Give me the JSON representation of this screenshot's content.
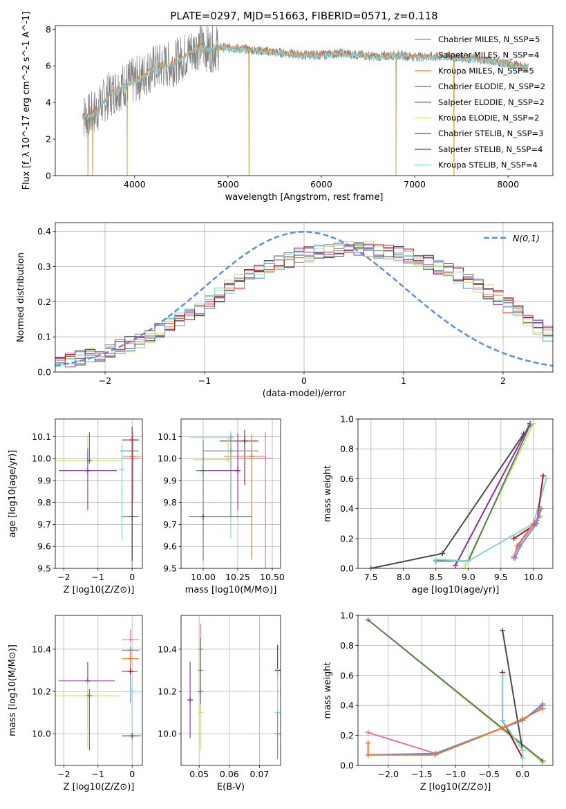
{
  "colors": {
    "Chabrier MILES": "#6b8fd6",
    "Salpeter MILES": "#e8709a",
    "Kroupa MILES": "#e8742a",
    "Chabrier ELODIE": "#5a7a5a",
    "Salpeter ELODIE": "#8a2aa8",
    "Kroupa ELODIE": "#c8e070",
    "Chabrier STELIB": "#4a4a4a",
    "Salpeter STELIB": "#a01818",
    "Kroupa STELIB": "#7fd3dc",
    "normal": "#5b8fd9",
    "spectrum": "#808080"
  },
  "chart_data": [
    {
      "id": "spectrum",
      "type": "line",
      "title": "PLATE=0297, MJD=51663, FIBERID=0571, z=0.118",
      "xlabel": "wavelength [Angstrom, rest frame]",
      "ylabel": "Flux [f_λ 10^-17 erg cm^-2 s^-1 A^-1]",
      "xlim": [
        3150,
        8480
      ],
      "ylim": [
        0,
        8.2
      ],
      "xticks": [
        4000,
        5000,
        6000,
        7000,
        8000
      ],
      "yticks": [
        0,
        2,
        4,
        6,
        8
      ],
      "grid": false,
      "legend_position": "top-right",
      "legend": [
        {
          "model": "Chabrier MILES",
          "label": "Chabrier MILES, N_SSP=5"
        },
        {
          "model": "Salpeter MILES",
          "label": "Salpeter MILES, N_SSP=4"
        },
        {
          "model": "Kroupa MILES",
          "label": "Kroupa MILES, N_SSP=5"
        },
        {
          "model": "Chabrier ELODIE",
          "label": "Chabrier ELODIE, N_SSP=2"
        },
        {
          "model": "Salpeter ELODIE",
          "label": "Salpeter ELODIE, N_SSP=2"
        },
        {
          "model": "Kroupa ELODIE",
          "label": "Kroupa ELODIE, N_SSP=2"
        },
        {
          "model": "Chabrier STELIB",
          "label": "Chabrier STELIB, N_SSP=3"
        },
        {
          "model": "Salpeter STELIB",
          "label": "Salpeter STELIB, N_SSP=4"
        },
        {
          "model": "Kroupa STELIB",
          "label": "Kroupa STELIB, N_SSP=4"
        }
      ],
      "continuum": {
        "x": [
          3440,
          3500,
          3600,
          3700,
          3800,
          3900,
          4000,
          4100,
          4200,
          4300,
          4400,
          4500,
          4600,
          4700,
          4800,
          4900,
          5000,
          5200,
          5400,
          5600,
          5800,
          6000,
          6200,
          6400,
          6600,
          6800,
          7000,
          7200,
          7400,
          7600,
          7800,
          8000,
          8220
        ],
        "y": [
          3.3,
          3.2,
          3.6,
          4.3,
          4.7,
          5.0,
          5.2,
          5.5,
          5.9,
          6.0,
          6.1,
          6.4,
          6.8,
          7.1,
          6.9,
          7.0,
          7.0,
          6.9,
          6.8,
          6.7,
          6.6,
          6.6,
          6.7,
          6.6,
          6.5,
          6.6,
          6.5,
          6.5,
          6.5,
          6.4,
          6.3,
          6.1,
          5.9
        ]
      },
      "noisy_ranges": [
        [
          3450,
          4900
        ]
      ],
      "spike_wavelengths": [
        3500,
        3550,
        3920,
        5225,
        6800,
        7420
      ],
      "models_plotted": [
        "Kroupa MILES",
        "Kroupa STELIB"
      ]
    },
    {
      "id": "residuals",
      "type": "histogram",
      "xlabel": "(data-model)/error",
      "ylabel": "Normed distribution",
      "xlim": [
        -2.5,
        2.5
      ],
      "ylim": [
        0,
        0.425
      ],
      "xticks": [
        -2,
        -1,
        0,
        1,
        2
      ],
      "yticks": [
        0.0,
        0.1,
        0.2,
        0.3,
        0.4
      ],
      "grid": true,
      "legend_position": "top-right",
      "legend": [
        {
          "label": "N(0,1)",
          "style": "dashed"
        }
      ],
      "bin_width": 0.1,
      "base_values": [
        0.03,
        0.035,
        0.04,
        0.045,
        0.05,
        0.06,
        0.07,
        0.08,
        0.09,
        0.105,
        0.12,
        0.135,
        0.15,
        0.165,
        0.18,
        0.2,
        0.22,
        0.24,
        0.255,
        0.27,
        0.285,
        0.3,
        0.31,
        0.32,
        0.33,
        0.335,
        0.34,
        0.345,
        0.35,
        0.35,
        0.35,
        0.35,
        0.345,
        0.34,
        0.335,
        0.33,
        0.32,
        0.31,
        0.3,
        0.29,
        0.275,
        0.26,
        0.245,
        0.23,
        0.21,
        0.19,
        0.17,
        0.15,
        0.13,
        0.11,
        0.095,
        0.08,
        0.07,
        0.06,
        0.052,
        0.045,
        0.04,
        0.035,
        0.032,
        0.03
      ]
    },
    {
      "id": "age-vs-Z",
      "type": "scatter",
      "xlabel": "Z [log10(Z/Z⊙)]",
      "ylabel": "age  [log10(age/yr)]",
      "xlim": [
        -2.25,
        0.3
      ],
      "ylim": [
        9.5,
        10.18
      ],
      "xticks": [
        -2,
        -1,
        0
      ],
      "yticks": [
        9.5,
        9.6,
        9.7,
        9.8,
        9.9,
        10.0,
        10.1
      ],
      "grid": true,
      "points": [
        {
          "model": "Kroupa ELODIE",
          "x": -1.3,
          "y": 9.99,
          "xerr": [
            1.0,
            1.0
          ],
          "yerr": [
            0.0,
            0.12
          ]
        },
        {
          "model": "Salpeter ELODIE",
          "x": -1.3,
          "y": 9.945,
          "xerr": [
            0.85,
            0.85
          ],
          "yerr": [
            0.18,
            0.1
          ]
        },
        {
          "model": "Chabrier ELODIE",
          "x": -1.25,
          "y": 9.99,
          "xerr": [
            0.05,
            0.05
          ],
          "yerr": [
            0.0,
            0.13
          ]
        },
        {
          "model": "Chabrier MILES",
          "x": 0.0,
          "y": 10.035,
          "xerr": [
            0.35,
            0.2
          ],
          "yerr": [
            0.6,
            0.08
          ]
        },
        {
          "model": "Salpeter STELIB",
          "x": 0.0,
          "y": 10.085,
          "xerr": [
            0.3,
            0.2
          ],
          "yerr": [
            0.55,
            0.06
          ]
        },
        {
          "model": "Kroupa MILES",
          "x": 0.0,
          "y": 10.01,
          "xerr": [
            0.3,
            0.25
          ],
          "yerr": [
            0.4,
            0.1
          ]
        },
        {
          "model": "Salpeter MILES",
          "x": 0.02,
          "y": 10.0,
          "xerr": [
            0.3,
            0.2
          ],
          "yerr": [
            0.2,
            0.12
          ]
        },
        {
          "model": "Chabrier STELIB",
          "x": 0.0,
          "y": 9.735,
          "xerr": [
            0.3,
            0.2
          ],
          "yerr": [
            0.2,
            0.37
          ]
        },
        {
          "model": "Kroupa STELIB",
          "x": -0.3,
          "y": 9.95,
          "xerr": [
            0.0,
            0.0
          ],
          "yerr": [
            0.32,
            0.12
          ]
        }
      ]
    },
    {
      "id": "age-vs-mass",
      "type": "scatter",
      "xlabel": "mass [log10(M/M⊙)]",
      "ylabel": "",
      "xlim": [
        9.84,
        10.56
      ],
      "ylim": [
        9.5,
        10.18
      ],
      "xticks": [
        10.0,
        10.25,
        10.5
      ],
      "yticks": [
        9.5,
        9.6,
        9.7,
        9.8,
        9.9,
        10.0,
        10.1
      ],
      "grid": true,
      "points": [
        {
          "model": "Kroupa STELIB",
          "x": 10.2,
          "y": 10.095,
          "xerr": [
            0.3,
            0.0
          ],
          "yerr": [
            0.46,
            0.03
          ]
        },
        {
          "model": "Salpeter STELIB",
          "x": 10.3,
          "y": 10.08,
          "xerr": [
            0.18,
            0.1
          ],
          "yerr": [
            0.2,
            0.05
          ]
        },
        {
          "model": "Chabrier MILES",
          "x": 10.2,
          "y": 10.035,
          "xerr": [
            0.2,
            0.2
          ],
          "yerr": [
            0.3,
            0.08
          ]
        },
        {
          "model": "Kroupa MILES",
          "x": 10.35,
          "y": 10.01,
          "xerr": [
            0.2,
            0.1
          ],
          "yerr": [
            0.47,
            0.1
          ]
        },
        {
          "model": "Salpeter MILES",
          "x": 10.45,
          "y": 10.0,
          "xerr": [
            0.2,
            0.05
          ],
          "yerr": [
            0.53,
            0.12
          ]
        },
        {
          "model": "Kroupa ELODIE",
          "x": 10.18,
          "y": 9.995,
          "xerr": [
            0.25,
            0.0
          ],
          "yerr": [
            0.0,
            0.1
          ]
        },
        {
          "model": "Salpeter ELODIE",
          "x": 10.25,
          "y": 9.945,
          "xerr": [
            0.25,
            0.0
          ],
          "yerr": [
            0.18,
            0.17
          ]
        },
        {
          "model": "Chabrier ELODIE",
          "x": 10.0,
          "y": 9.945,
          "xerr": [
            0.05,
            0.0
          ],
          "yerr": [
            0.41,
            0.14
          ]
        },
        {
          "model": "Chabrier STELIB",
          "x": 10.0,
          "y": 9.735,
          "xerr": [
            0.1,
            0.35
          ],
          "yerr": [
            0.0,
            0.0
          ]
        }
      ]
    },
    {
      "id": "weight-vs-age",
      "type": "line",
      "xlabel": "age  [log10(age/yr)]",
      "ylabel": "mass weight",
      "xlim": [
        7.3,
        10.3
      ],
      "ylim": [
        0,
        1.0
      ],
      "xticks": [
        7.5,
        8.0,
        8.5,
        9.0,
        9.5,
        10.0
      ],
      "yticks": [
        0.0,
        0.2,
        0.4,
        0.6,
        0.8,
        1.0
      ],
      "grid": true,
      "series": [
        {
          "model": "Chabrier STELIB",
          "x": [
            7.5,
            8.6,
            9.85
          ],
          "y": [
            0.0,
            0.1,
            0.9
          ]
        },
        {
          "model": "Salpeter ELODIE",
          "x": [
            8.8,
            9.95
          ],
          "y": [
            0.02,
            0.97
          ]
        },
        {
          "model": "Kroupa ELODIE",
          "x": [
            8.95,
            10.0
          ],
          "y": [
            0.02,
            0.97
          ]
        },
        {
          "model": "Chabrier ELODIE",
          "x": [
            8.5,
            9.0,
            9.95
          ],
          "y": [
            0.05,
            0.05,
            0.96
          ]
        },
        {
          "model": "Kroupa STELIB",
          "x": [
            8.5,
            9.0,
            10.0,
            10.2
          ],
          "y": [
            0.06,
            0.05,
            0.3,
            0.6
          ]
        },
        {
          "model": "Salpeter STELIB",
          "x": [
            9.7,
            10.05,
            10.15
          ],
          "y": [
            0.2,
            0.3,
            0.62
          ]
        },
        {
          "model": "Kroupa MILES",
          "x": [
            9.7,
            9.75,
            10.0,
            10.1
          ],
          "y": [
            0.07,
            0.15,
            0.3,
            0.35
          ]
        },
        {
          "model": "Salpeter MILES",
          "x": [
            9.7,
            9.78,
            10.05,
            10.1
          ],
          "y": [
            0.08,
            0.16,
            0.32,
            0.4
          ]
        },
        {
          "model": "Chabrier MILES",
          "x": [
            9.72,
            9.8,
            10.05,
            10.12
          ],
          "y": [
            0.07,
            0.15,
            0.3,
            0.4
          ]
        }
      ]
    },
    {
      "id": "mass-vs-Z",
      "type": "scatter",
      "xlabel": "Z [log10(Z/Z⊙)]",
      "ylabel": "mass [log10(M/M⊙)]",
      "xlim": [
        -2.25,
        0.3
      ],
      "ylim": [
        9.85,
        10.56
      ],
      "xticks": [
        -2,
        -1,
        0
      ],
      "yticks": [
        10.0,
        10.2,
        10.4
      ],
      "grid": true,
      "points": [
        {
          "model": "Salpeter ELODIE",
          "x": -1.3,
          "y": 10.25,
          "xerr": [
            0.85,
            0.8
          ],
          "yerr": [
            0.23,
            0.09
          ]
        },
        {
          "model": "Kroupa ELODIE",
          "x": -1.3,
          "y": 10.18,
          "xerr": [
            0.95,
            0.95
          ],
          "yerr": [
            0.25,
            0.07
          ]
        },
        {
          "model": "Chabrier ELODIE",
          "x": -1.25,
          "y": 10.18,
          "xerr": [
            0.0,
            0.0
          ],
          "yerr": [
            0.26,
            0.03
          ]
        },
        {
          "model": "Salpeter MILES",
          "x": -0.05,
          "y": 10.445,
          "xerr": [
            0.25,
            0.25
          ],
          "yerr": [
            0.0,
            0.05
          ]
        },
        {
          "model": "Chabrier MILES",
          "x": -0.05,
          "y": 10.395,
          "xerr": [
            0.25,
            0.25
          ],
          "yerr": [
            0.25,
            0.02
          ]
        },
        {
          "model": "Kroupa MILES",
          "x": -0.05,
          "y": 10.355,
          "xerr": [
            0.25,
            0.25
          ],
          "yerr": [
            0.05,
            0.05
          ]
        },
        {
          "model": "Salpeter STELIB",
          "x": -0.05,
          "y": 10.295,
          "xerr": [
            0.25,
            0.2
          ],
          "yerr": [
            0.0,
            0.0
          ]
        },
        {
          "model": "Kroupa STELIB",
          "x": 0.0,
          "y": 10.2,
          "xerr": [
            0.3,
            0.3
          ],
          "yerr": [
            0.32,
            0.0
          ]
        },
        {
          "model": "Chabrier STELIB",
          "x": 0.0,
          "y": 9.99,
          "xerr": [
            0.3,
            0.25
          ],
          "yerr": [
            0.0,
            0.0
          ]
        }
      ]
    },
    {
      "id": "mass-vs-ebv",
      "type": "scatter",
      "xlabel": "E(B-V)",
      "ylabel": "",
      "xlim": [
        0.044,
        0.077
      ],
      "ylim": [
        9.85,
        10.56
      ],
      "xticks": [
        0.05,
        0.06,
        0.07
      ],
      "yticks": [
        10.0,
        10.2,
        10.4
      ],
      "grid": true,
      "points": [
        {
          "model": "Salpeter ELODIE",
          "x": 0.047,
          "y": 10.16,
          "xerr": [
            0,
            0
          ],
          "yerr": [
            0.18,
            0.18
          ]
        },
        {
          "model": "Salpeter MILES",
          "x": 0.0505,
          "y": 10.4,
          "xerr": [
            0,
            0
          ],
          "yerr": [
            0.15,
            0.12
          ]
        },
        {
          "model": "Kroupa MILES",
          "x": 0.0505,
          "y": 10.3,
          "xerr": [
            0,
            0
          ],
          "yerr": [
            0.2,
            0.15
          ]
        },
        {
          "model": "Kroupa ELODIE",
          "x": 0.0505,
          "y": 10.1,
          "xerr": [
            0,
            0
          ],
          "yerr": [
            0.18,
            0.2
          ]
        },
        {
          "model": "Chabrier ELODIE",
          "x": 0.0505,
          "y": 10.2,
          "xerr": [
            0,
            0
          ],
          "yerr": [
            0.06,
            0.25
          ]
        },
        {
          "model": "Salpeter STELIB",
          "x": 0.076,
          "y": 10.3,
          "xerr": [
            0,
            0
          ],
          "yerr": [
            0.04,
            0.12
          ]
        },
        {
          "model": "Kroupa STELIB",
          "x": 0.076,
          "y": 10.1,
          "xerr": [
            0,
            0
          ],
          "yerr": [
            0.22,
            0.21
          ]
        },
        {
          "model": "Chabrier MILES",
          "x": 0.076,
          "y": 10.0,
          "xerr": [
            0,
            0
          ],
          "yerr": [
            0.12,
            0.1
          ]
        }
      ]
    },
    {
      "id": "weight-vs-Z",
      "type": "line",
      "xlabel": "Z [log10(Z/Z⊙)]",
      "ylabel": "mass weight",
      "xlim": [
        -2.45,
        0.45
      ],
      "ylim": [
        0,
        1.0
      ],
      "xticks": [
        -2.0,
        -1.5,
        -1.0,
        -0.5,
        0.0
      ],
      "yticks": [
        0.0,
        0.2,
        0.4,
        0.6,
        0.8,
        1.0
      ],
      "grid": true,
      "series": [
        {
          "model": "Kroupa ELODIE",
          "x": [
            -2.3,
            0.3
          ],
          "y": [
            0.97,
            0.02
          ]
        },
        {
          "model": "Chabrier ELODIE",
          "x": [
            -2.3,
            0.3
          ],
          "y": [
            0.97,
            0.03
          ]
        },
        {
          "model": "Chabrier STELIB",
          "x": [
            -0.3,
            0.0
          ],
          "y": [
            0.9,
            0.1
          ]
        },
        {
          "model": "Salpeter STELIB",
          "x": [
            -0.3,
            -0.3,
            0.0
          ],
          "y": [
            0.62,
            0.3,
            0.05
          ]
        },
        {
          "model": "Kroupa STELIB",
          "x": [
            -0.3,
            -0.3,
            0.0,
            0.0
          ],
          "y": [
            0.6,
            0.3,
            0.1,
            0.05
          ]
        },
        {
          "model": "Salpeter MILES",
          "x": [
            -2.3,
            -1.3,
            0.0,
            0.3
          ],
          "y": [
            0.22,
            0.08,
            0.3,
            0.4
          ]
        },
        {
          "model": "Chabrier MILES",
          "x": [
            -2.3,
            -1.3,
            0.0,
            0.3
          ],
          "y": [
            0.07,
            0.08,
            0.3,
            0.41
          ]
        },
        {
          "model": "Kroupa MILES",
          "x": [
            -2.3,
            -2.3,
            -1.3,
            -0.3,
            0.0,
            0.3
          ],
          "y": [
            0.15,
            0.07,
            0.07,
            0.25,
            0.31,
            0.38
          ]
        }
      ]
    }
  ]
}
